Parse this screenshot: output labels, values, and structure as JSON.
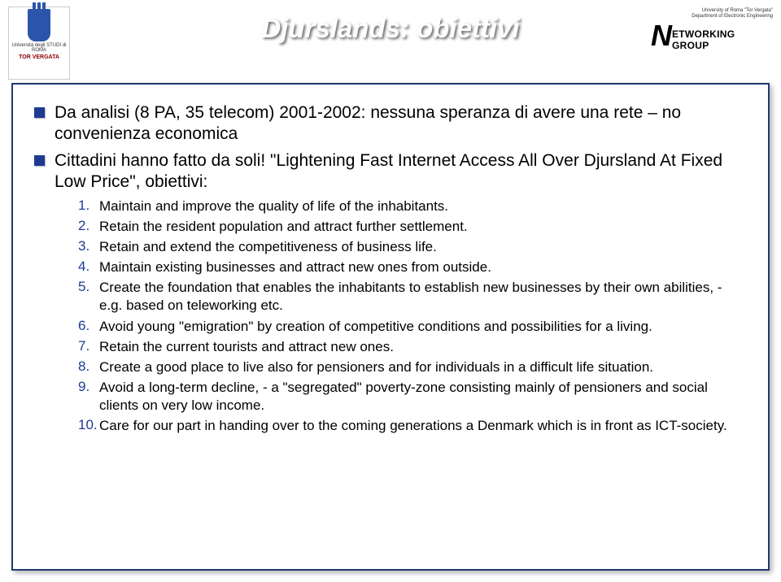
{
  "title": "Djurslands: obiettivi",
  "logo_left": {
    "line1": "Università degli STUDI di ROMA",
    "line2": "TOR VERGATA"
  },
  "logo_right": {
    "line1": "University of Roma \"Tor Vergata\"",
    "line2": "Department of Electronic Engineering",
    "big_n": "N",
    "rest": "ETWORKING GROUP"
  },
  "bullets": [
    "Da analisi (8 PA, 35 telecom) 2001-2002: nessuna speranza di avere una rete – no convenienza economica",
    "Cittadini hanno fatto da soli! \"Lightening Fast Internet Access All Over Djursland At Fixed Low Price\", obiettivi:"
  ],
  "items": [
    {
      "n": "1.",
      "t": "Maintain and improve the quality of life of the inhabitants."
    },
    {
      "n": "2.",
      "t": "Retain the resident population and attract further settlement."
    },
    {
      "n": "3.",
      "t": "Retain and extend the competitiveness of business life."
    },
    {
      "n": "4.",
      "t": "Maintain existing businesses and attract new ones from outside."
    },
    {
      "n": "5.",
      "t": "Create the foundation that enables the inhabitants to establish new businesses by their own abilities, - e.g. based on teleworking etc."
    },
    {
      "n": "6.",
      "t": "Avoid young \"emigration\" by creation of competitive conditions and possibilities for a living."
    },
    {
      "n": "7.",
      "t": "Retain the current tourists and attract new ones."
    },
    {
      "n": "8.",
      "t": "Create a good place to live also for pensioners and for individuals in a difficult life situation."
    },
    {
      "n": "9.",
      "t": "Avoid a long-term decline, - a \"segregated\" poverty-zone consisting mainly of pensioners and social clients on very low income."
    },
    {
      "n": "10.",
      "t": "Care for our part in handing over to the coming generations a Denmark which is in front as ICT-society."
    }
  ],
  "colors": {
    "title": "#ffffff",
    "bullet_square": "#1f3a93",
    "number": "#1f3a93",
    "frame_border": "#1f3a6d",
    "body_text": "#000000"
  }
}
